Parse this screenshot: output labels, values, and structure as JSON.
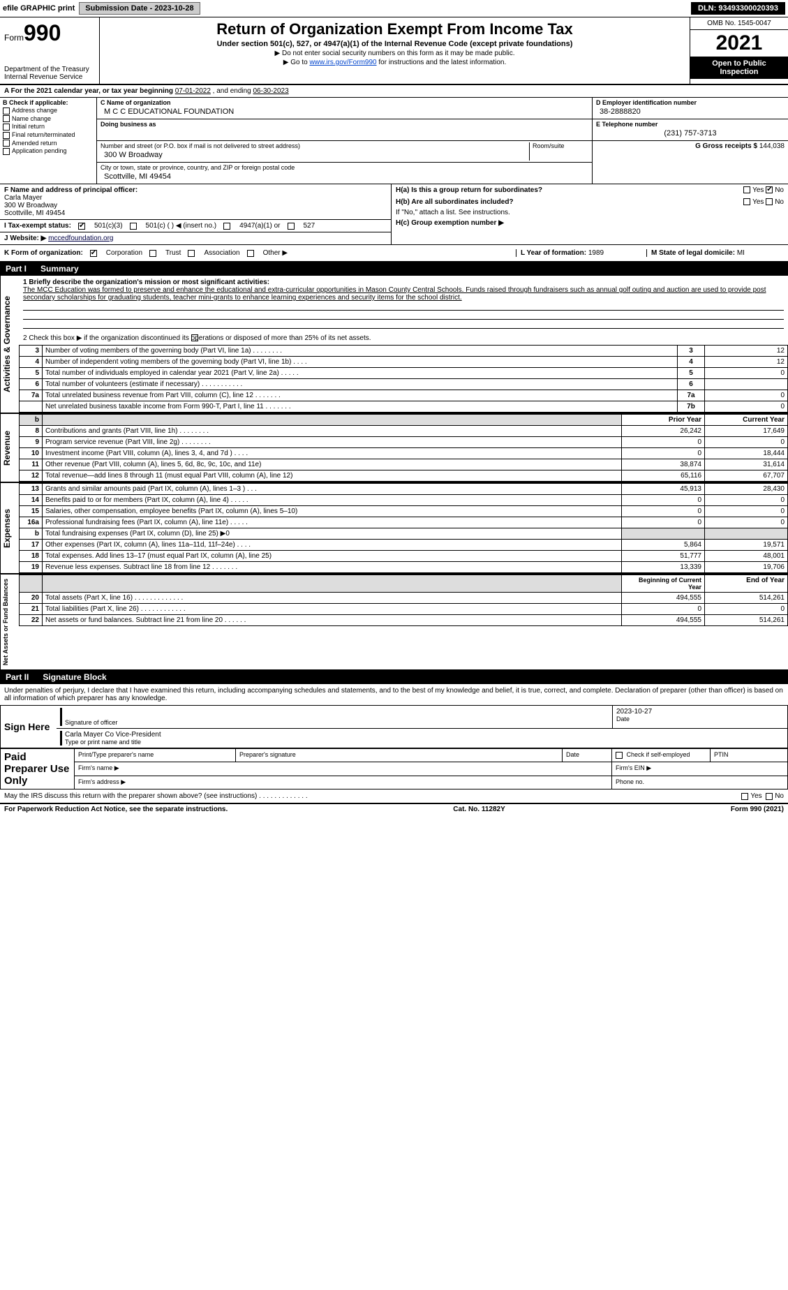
{
  "top": {
    "efile": "efile GRAPHIC print",
    "submission_label": "Submission Date - 2023-10-28",
    "dln": "DLN: 93493300020393"
  },
  "header": {
    "form_word": "Form",
    "form_number": "990",
    "title": "Return of Organization Exempt From Income Tax",
    "subtitle": "Under section 501(c), 527, or 4947(a)(1) of the Internal Revenue Code (except private foundations)",
    "line1": "▶ Do not enter social security numbers on this form as it may be made public.",
    "line2_pre": "▶ Go to ",
    "line2_link": "www.irs.gov/Form990",
    "line2_post": " for instructions and the latest information.",
    "dept": "Department of the Treasury\nInternal Revenue Service",
    "omb": "OMB No. 1545-0047",
    "year": "2021",
    "otp": "Open to Public\nInspection"
  },
  "A": {
    "label": "A For the 2021 calendar year, or tax year beginning ",
    "begin": "07-01-2022",
    "mid": " , and ending ",
    "end": "06-30-2023"
  },
  "B": {
    "label": "B Check if applicable:",
    "items": [
      "Address change",
      "Name change",
      "Initial return",
      "Final return/terminated",
      "Amended return",
      "Application pending"
    ]
  },
  "C": {
    "name_lbl": "C Name of organization",
    "name": "M C C EDUCATIONAL FOUNDATION",
    "dba_lbl": "Doing business as",
    "street_lbl": "Number and street (or P.O. box if mail is not delivered to street address)",
    "room_lbl": "Room/suite",
    "street": "300 W Broadway",
    "city_lbl": "City or town, state or province, country, and ZIP or foreign postal code",
    "city": "Scottville, MI  49454"
  },
  "D": {
    "lbl": "D Employer identification number",
    "val": "38-2888820"
  },
  "E": {
    "lbl": "E Telephone number",
    "val": "(231) 757-3713"
  },
  "G": {
    "lbl": "G Gross receipts $",
    "val": "144,038"
  },
  "F": {
    "lbl": "F  Name and address of principal officer:",
    "name": "Carla Mayer",
    "street": "300 W Broadway",
    "city": "Scottville, MI  49454"
  },
  "H": {
    "a": "H(a)  Is this a group return for subordinates?",
    "b": "H(b)  Are all subordinates included?",
    "b2": "If \"No,\" attach a list. See instructions.",
    "c": "H(c)  Group exemption number ▶",
    "yes": "Yes",
    "no": "No"
  },
  "I": {
    "lbl": "I  Tax-exempt status:",
    "opt1": "501(c)(3)",
    "opt2": "501(c) (   ) ◀ (insert no.)",
    "opt3": "4947(a)(1) or",
    "opt4": "527"
  },
  "J": {
    "lbl": "J  Website: ▶",
    "val": "mccedfoundation.org"
  },
  "K": {
    "lbl": "K Form of organization:",
    "opts": [
      "Corporation",
      "Trust",
      "Association",
      "Other ▶"
    ]
  },
  "L": {
    "lbl": "L Year of formation:",
    "val": "1989"
  },
  "M": {
    "lbl": "M State of legal domicile:",
    "val": "MI"
  },
  "part1": {
    "hdr": "Part I",
    "title": "Summary",
    "q1": "1  Briefly describe the organization's mission or most significant activities:",
    "mission": "The MCC Education was formed to preserve and enhance the educational and extra-curricular opportunities in Mason County Central Schools. Funds raised through fundraisers such as annual golf outing and auction are used to provide post secondary scholarships for graduating students, teacher mini-grants to enhance learning experiences and security items for the school district.",
    "q2": "2  Check this box ▶         if the organization discontinued its operations or disposed of more than 25% of its net assets.",
    "rows_gov": [
      {
        "n": "3",
        "t": "Number of voting members of the governing body (Part VI, line 1a)   .    .    .    .    .    .    .    .",
        "c": "3",
        "v": "12"
      },
      {
        "n": "4",
        "t": "Number of independent voting members of the governing body (Part VI, line 1b)    .    .    .    .",
        "c": "4",
        "v": "12"
      },
      {
        "n": "5",
        "t": "Total number of individuals employed in calendar year 2021 (Part V, line 2a)   .    .    .    .    .",
        "c": "5",
        "v": "0"
      },
      {
        "n": "6",
        "t": "Total number of volunteers (estimate if necessary)    .    .    .    .    .    .    .    .    .    .    .",
        "c": "6",
        "v": ""
      },
      {
        "n": "7a",
        "t": "Total unrelated business revenue from Part VIII, column (C), line 12   .    .    .    .    .    .    .",
        "c": "7a",
        "v": "0"
      },
      {
        "n": "",
        "t": "Net unrelated business taxable income from Form 990-T, Part I, line 11   .    .    .    .    .    .    .",
        "c": "7b",
        "v": "0"
      }
    ],
    "prior_lbl": "Prior Year",
    "curr_lbl": "Current Year",
    "revenue": [
      {
        "n": "8",
        "t": "Contributions and grants (Part VIII, line 1h)   .    .    .    .    .    .    .    .",
        "p": "26,242",
        "c": "17,649"
      },
      {
        "n": "9",
        "t": "Program service revenue (Part VIII, line 2g)   .    .    .    .    .    .    .    .",
        "p": "0",
        "c": "0"
      },
      {
        "n": "10",
        "t": "Investment income (Part VIII, column (A), lines 3, 4, and 7d )    .    .    .    .",
        "p": "0",
        "c": "18,444"
      },
      {
        "n": "11",
        "t": "Other revenue (Part VIII, column (A), lines 5, 6d, 8c, 9c, 10c, and 11e)",
        "p": "38,874",
        "c": "31,614"
      },
      {
        "n": "12",
        "t": "Total revenue—add lines 8 through 11 (must equal Part VIII, column (A), line 12)",
        "p": "65,116",
        "c": "67,707"
      }
    ],
    "expenses": [
      {
        "n": "13",
        "t": "Grants and similar amounts paid (Part IX, column (A), lines 1–3 )   .    .    .",
        "p": "45,913",
        "c": "28,430"
      },
      {
        "n": "14",
        "t": "Benefits paid to or for members (Part IX, column (A), line 4)   .    .    .    .    .",
        "p": "0",
        "c": "0"
      },
      {
        "n": "15",
        "t": "Salaries, other compensation, employee benefits (Part IX, column (A), lines 5–10)",
        "p": "0",
        "c": "0"
      },
      {
        "n": "16a",
        "t": "Professional fundraising fees (Part IX, column (A), line 11e)   .    .    .    .    .",
        "p": "0",
        "c": "0"
      },
      {
        "n": "b",
        "t": "Total fundraising expenses (Part IX, column (D), line 25) ▶0",
        "p": "",
        "c": "",
        "shade": true
      },
      {
        "n": "17",
        "t": "Other expenses (Part IX, column (A), lines 11a–11d, 11f–24e)    .    .    .    .",
        "p": "5,864",
        "c": "19,571"
      },
      {
        "n": "18",
        "t": "Total expenses. Add lines 13–17 (must equal Part IX, column (A), line 25)",
        "p": "51,777",
        "c": "48,001"
      },
      {
        "n": "19",
        "t": "Revenue less expenses. Subtract line 18 from line 12   .    .    .    .    .    .    .",
        "p": "13,339",
        "c": "19,706"
      }
    ],
    "bcy_lbl": "Beginning of Current Year",
    "eoy_lbl": "End of Year",
    "netassets": [
      {
        "n": "20",
        "t": "Total assets (Part X, line 16)   .    .    .    .    .    .    .    .    .    .    .    .    .",
        "p": "494,555",
        "c": "514,261"
      },
      {
        "n": "21",
        "t": "Total liabilities (Part X, line 26)   .    .    .    .    .    .    .    .    .    .    .    .",
        "p": "0",
        "c": "0"
      },
      {
        "n": "22",
        "t": "Net assets or fund balances. Subtract line 21 from line 20   .    .    .    .    .    .",
        "p": "494,555",
        "c": "514,261"
      }
    ],
    "side_gov": "Activities & Governance",
    "side_rev": "Revenue",
    "side_exp": "Expenses",
    "side_net": "Net Assets or\nFund Balances"
  },
  "part2": {
    "hdr": "Part II",
    "title": "Signature Block",
    "perjury": "Under penalties of perjury, I declare that I have examined this return, including accompanying schedules and statements, and to the best of my knowledge and belief, it is true, correct, and complete. Declaration of preparer (other than officer) is based on all information of which preparer has any knowledge.",
    "sign_here": "Sign Here",
    "sig_off": "Signature of officer",
    "date_lbl": "Date",
    "date": "2023-10-27",
    "name": "Carla Mayer Co Vice-President",
    "name_lbl": "Type or print name and title",
    "paid": "Paid Preparer Use Only",
    "prep_name": "Print/Type preparer's name",
    "prep_sig": "Preparer's signature",
    "chk_se": "Check          if self-employed",
    "ptin": "PTIN",
    "firm_name": "Firm's name   ▶",
    "firm_ein": "Firm's EIN ▶",
    "firm_addr": "Firm's address ▶",
    "phone": "Phone no.",
    "may_irs": "May the IRS discuss this return with the preparer shown above? (see instructions)   .    .    .    .    .    .    .    .    .    .    .    .    ."
  },
  "footer": {
    "left": "For Paperwork Reduction Act Notice, see the separate instructions.",
    "mid": "Cat. No. 11282Y",
    "right": "Form 990 (2021)"
  }
}
